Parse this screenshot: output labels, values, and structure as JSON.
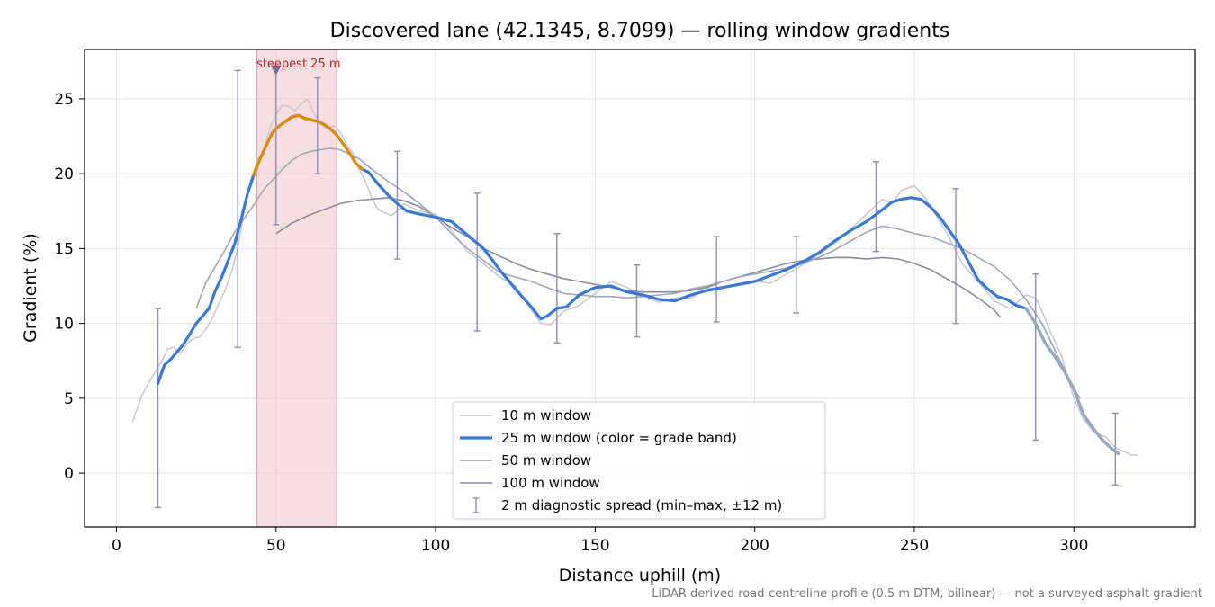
{
  "chart_data": {
    "type": "line",
    "title": "Discovered lane (42.1345, 8.7099) — rolling window gradients",
    "xlabel": "Distance uphill (m)",
    "ylabel": "Gradient (%)",
    "xlim": [
      -10,
      338
    ],
    "ylim": [
      -3.6,
      28.3
    ],
    "xticks": [
      0,
      50,
      100,
      150,
      200,
      250,
      300
    ],
    "yticks": [
      0,
      5,
      10,
      15,
      20,
      25
    ],
    "grid": true,
    "legend_position": "bottom-center",
    "footnote": "LiDAR-derived road-centreline profile (0.5 m DTM, bilinear) — not a surveyed asphalt gradient",
    "annotation": {
      "text": "steepest 25 m",
      "x": 50,
      "y": 27.0,
      "span": [
        44,
        69
      ],
      "color": "#c0202a"
    },
    "colors": {
      "w10": "#c5c8d6",
      "w25": "#3a78d8",
      "w25_steep": "#e08a00",
      "w25_gentle": "#9aa8b8",
      "w50": "#9ea6b8",
      "w100": "#868c9c",
      "spread": "#8c8cb4",
      "band": "#f0c4c8"
    },
    "legend": [
      {
        "key": "w10",
        "label": "10 m window"
      },
      {
        "key": "w25",
        "label": "25 m window (color = grade band)"
      },
      {
        "key": "w50",
        "label": "50 m window"
      },
      {
        "key": "w100",
        "label": "100 m window"
      },
      {
        "key": "spread",
        "label": "2 m diagnostic spread (min–max, ±12 m)"
      }
    ],
    "series": [
      {
        "name": "10 m window",
        "key": "w10",
        "x": [
          5,
          8,
          10,
          12,
          14,
          16,
          18,
          20,
          22,
          24,
          26,
          28,
          30,
          32,
          34,
          36,
          38,
          40,
          42,
          44,
          46,
          48,
          50,
          52,
          54,
          56,
          58,
          60,
          62,
          64,
          66,
          68,
          70,
          72,
          74,
          76,
          78,
          80,
          82,
          84,
          86,
          88,
          90,
          92,
          95,
          100,
          105,
          110,
          115,
          120,
          125,
          130,
          133,
          136,
          140,
          145,
          150,
          155,
          160,
          165,
          170,
          175,
          180,
          185,
          190,
          195,
          200,
          205,
          210,
          215,
          220,
          225,
          230,
          235,
          240,
          243,
          246,
          250,
          253,
          256,
          260,
          265,
          270,
          275,
          280,
          285,
          288,
          290,
          293,
          296,
          300,
          303,
          306,
          310,
          313,
          316,
          318,
          320
        ],
        "y": [
          3.4,
          5.2,
          6.0,
          6.7,
          7.4,
          8.3,
          8.4,
          8.0,
          8.6,
          9.0,
          9.1,
          9.6,
          10.3,
          11.3,
          12.2,
          13.4,
          15.0,
          17.5,
          19.5,
          20.8,
          21.5,
          23.0,
          24.0,
          24.6,
          24.5,
          24.2,
          24.7,
          25.0,
          24.0,
          23.3,
          23.0,
          23.2,
          22.8,
          22.0,
          21.4,
          20.3,
          19.5,
          18.4,
          17.6,
          17.4,
          17.2,
          17.5,
          18.0,
          17.8,
          17.5,
          17.3,
          16.2,
          14.8,
          14.0,
          13.1,
          12.5,
          10.9,
          10.0,
          9.9,
          10.8,
          11.2,
          12.0,
          12.8,
          12.4,
          11.9,
          11.4,
          11.7,
          11.7,
          12.3,
          12.4,
          12.6,
          12.8,
          12.7,
          13.3,
          13.9,
          14.6,
          15.3,
          16.3,
          17.3,
          18.3,
          18.0,
          18.9,
          19.2,
          18.5,
          17.5,
          16.1,
          14.0,
          12.8,
          11.5,
          11.0,
          11.9,
          11.7,
          10.8,
          9.3,
          7.9,
          5.0,
          3.6,
          2.8,
          2.4,
          1.7,
          1.4,
          1.2,
          1.2
        ]
      },
      {
        "name": "25 m window (color = grade band)",
        "key": "w25",
        "x": [
          13,
          15,
          17,
          19,
          21,
          23,
          25,
          27,
          29,
          31,
          33,
          35,
          37,
          39,
          41,
          43,
          45,
          47,
          49,
          51,
          53,
          55,
          57,
          59,
          61,
          63,
          65,
          67,
          69,
          71,
          73,
          75,
          77,
          79,
          82,
          85,
          88,
          91,
          95,
          100,
          105,
          110,
          115,
          120,
          125,
          130,
          133,
          135,
          138,
          141,
          145,
          150,
          155,
          160,
          165,
          170,
          175,
          180,
          185,
          190,
          195,
          200,
          205,
          210,
          215,
          220,
          225,
          230,
          235,
          240,
          243,
          246,
          249,
          252,
          255,
          258,
          261,
          264,
          267,
          270,
          273,
          276,
          279,
          282,
          285,
          288,
          291,
          294,
          297,
          300,
          303,
          306,
          309,
          312,
          314
        ],
        "y": [
          6.0,
          7.2,
          7.6,
          8.1,
          8.6,
          9.3,
          10.0,
          10.5,
          11.0,
          12.2,
          13.1,
          14.2,
          15.3,
          16.9,
          18.6,
          19.9,
          21.0,
          21.9,
          22.8,
          23.2,
          23.5,
          23.8,
          23.9,
          23.7,
          23.6,
          23.5,
          23.3,
          23.0,
          22.6,
          22.0,
          21.4,
          20.7,
          20.3,
          20.1,
          19.3,
          18.6,
          18.0,
          17.5,
          17.3,
          17.1,
          16.8,
          15.9,
          15.0,
          13.6,
          12.3,
          11.1,
          10.3,
          10.5,
          11.0,
          11.1,
          11.9,
          12.4,
          12.5,
          12.1,
          11.9,
          11.6,
          11.5,
          11.9,
          12.2,
          12.4,
          12.6,
          12.8,
          13.2,
          13.6,
          14.1,
          14.7,
          15.5,
          16.2,
          16.8,
          17.6,
          18.1,
          18.3,
          18.4,
          18.3,
          17.8,
          17.1,
          16.2,
          15.3,
          14.1,
          12.9,
          12.3,
          11.8,
          11.6,
          11.2,
          11.0,
          10.0,
          8.7,
          7.8,
          6.8,
          5.6,
          3.9,
          3.0,
          2.2,
          1.6,
          1.3
        ]
      },
      {
        "name": "50 m window",
        "key": "w50",
        "x": [
          25,
          28,
          31,
          34,
          37,
          40,
          43,
          46,
          49,
          52,
          55,
          58,
          61,
          64,
          67,
          70,
          73,
          76,
          80,
          85,
          90,
          95,
          100,
          105,
          110,
          115,
          120,
          125,
          130,
          135,
          140,
          145,
          150,
          155,
          160,
          165,
          170,
          175,
          180,
          185,
          190,
          195,
          200,
          205,
          210,
          215,
          220,
          225,
          230,
          235,
          240,
          245,
          250,
          255,
          260,
          265,
          270,
          275,
          280,
          285,
          290,
          295,
          300,
          302
        ],
        "y": [
          11.0,
          12.7,
          13.8,
          14.9,
          16.1,
          17.0,
          17.9,
          18.9,
          19.6,
          20.3,
          20.9,
          21.3,
          21.5,
          21.6,
          21.7,
          21.6,
          21.3,
          21.0,
          20.3,
          19.5,
          18.8,
          18.0,
          17.1,
          16.0,
          15.0,
          14.2,
          13.4,
          13.1,
          12.8,
          12.4,
          12.0,
          11.9,
          11.8,
          11.8,
          11.7,
          11.8,
          11.9,
          12.0,
          12.3,
          12.5,
          12.8,
          13.1,
          13.3,
          13.5,
          13.7,
          14.0,
          14.4,
          14.9,
          15.5,
          16.1,
          16.5,
          16.3,
          16.0,
          15.8,
          15.4,
          15.0,
          14.4,
          13.8,
          12.9,
          11.6,
          10.0,
          7.8,
          5.6,
          5.0
        ]
      },
      {
        "name": "100 m window",
        "key": "w100",
        "x": [
          50,
          55,
          60,
          65,
          70,
          75,
          80,
          85,
          90,
          95,
          100,
          105,
          110,
          115,
          120,
          125,
          130,
          135,
          140,
          145,
          150,
          155,
          160,
          165,
          170,
          175,
          180,
          185,
          190,
          195,
          200,
          205,
          210,
          215,
          220,
          225,
          230,
          235,
          240,
          245,
          250,
          255,
          260,
          265,
          270,
          275,
          277
        ],
        "y": [
          16.0,
          16.7,
          17.2,
          17.6,
          18.0,
          18.2,
          18.3,
          18.4,
          18.2,
          17.8,
          17.1,
          16.4,
          15.8,
          15.0,
          14.5,
          14.0,
          13.6,
          13.3,
          13.0,
          12.8,
          12.6,
          12.4,
          12.2,
          12.1,
          12.1,
          12.1,
          12.2,
          12.4,
          12.8,
          13.1,
          13.4,
          13.7,
          14.0,
          14.2,
          14.3,
          14.4,
          14.4,
          14.3,
          14.4,
          14.3,
          14.0,
          13.6,
          13.0,
          12.4,
          11.7,
          10.9,
          10.4
        ]
      }
    ],
    "grade_band_ranges": [
      {
        "band": "steep",
        "from_x": 43,
        "to_x": 78,
        "color_key": "w25_steep"
      },
      {
        "band": "gentle",
        "from_x": 284,
        "to_x": 314,
        "color_key": "w25_gentle"
      }
    ],
    "spread_bars": [
      {
        "x": 13,
        "center": 6.0,
        "min": -2.3,
        "max": 11.0
      },
      {
        "x": 38,
        "center": 16.0,
        "min": 8.4,
        "max": 26.9
      },
      {
        "x": 50,
        "center": 23.0,
        "min": 16.6,
        "max": 27.0
      },
      {
        "x": 63,
        "center": 23.3,
        "min": 20.0,
        "max": 26.4
      },
      {
        "x": 88,
        "center": 18.0,
        "min": 14.3,
        "max": 21.5
      },
      {
        "x": 113,
        "center": 15.0,
        "min": 9.5,
        "max": 18.7
      },
      {
        "x": 138,
        "center": 11.0,
        "min": 8.7,
        "max": 16.0
      },
      {
        "x": 163,
        "center": 12.0,
        "min": 9.1,
        "max": 13.9
      },
      {
        "x": 188,
        "center": 12.2,
        "min": 10.1,
        "max": 15.8
      },
      {
        "x": 213,
        "center": 13.6,
        "min": 10.7,
        "max": 15.8
      },
      {
        "x": 238,
        "center": 17.5,
        "min": 14.8,
        "max": 20.8
      },
      {
        "x": 263,
        "center": 15.3,
        "min": 10.0,
        "max": 19.0
      },
      {
        "x": 288,
        "center": 10.0,
        "min": 2.2,
        "max": 13.3
      },
      {
        "x": 313,
        "center": 1.4,
        "min": -0.8,
        "max": 4.0
      }
    ]
  }
}
